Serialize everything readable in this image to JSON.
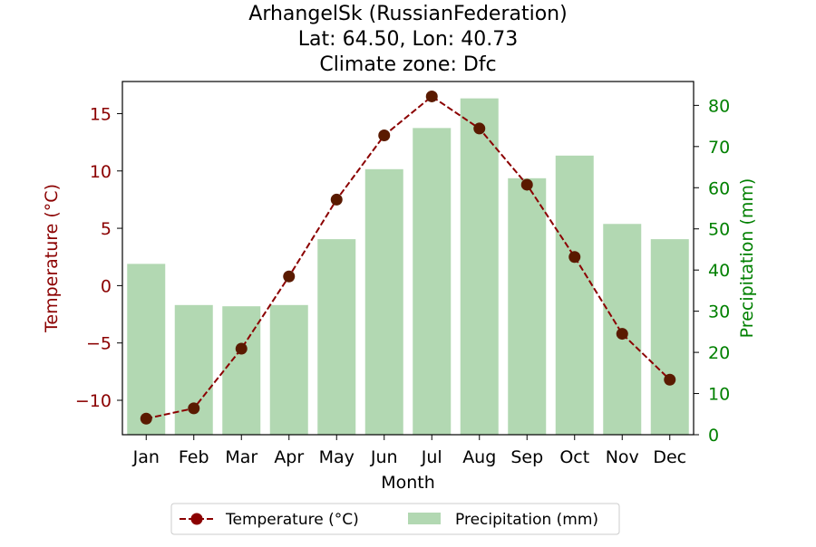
{
  "chart_data": {
    "type": "bar+line",
    "title_lines": [
      "ArhangelSk (RussianFederation)",
      "Lat: 64.50, Lon: 40.73",
      "Climate zone: Dfc"
    ],
    "xlabel": "Month",
    "categories": [
      "Jan",
      "Feb",
      "Mar",
      "Apr",
      "May",
      "Jun",
      "Jul",
      "Aug",
      "Sep",
      "Oct",
      "Nov",
      "Dec"
    ],
    "series": [
      {
        "name": "Temperature (°C)",
        "type": "line",
        "axis": "left",
        "values": [
          -11.6,
          -10.7,
          -5.5,
          0.8,
          7.5,
          13.1,
          16.5,
          13.7,
          8.8,
          2.5,
          -4.2,
          -8.2
        ],
        "color": "#8b0000",
        "marker_color": "#5a1a00"
      },
      {
        "name": "Precipitation (mm)",
        "type": "bar",
        "axis": "right",
        "values": [
          41.5,
          31.5,
          31.2,
          31.5,
          47.5,
          64.5,
          74.5,
          81.7,
          62.3,
          67.8,
          51.2,
          47.5
        ],
        "color": "#b2d8b2"
      }
    ],
    "y_left": {
      "label": "Temperature (°C)",
      "range": [
        -13.0,
        17.8
      ],
      "ticks": [
        -10,
        -5,
        0,
        5,
        10,
        15
      ],
      "tick_labels": [
        "−10",
        "−5",
        "0",
        "5",
        "10",
        "15"
      ],
      "color": "#8b0000"
    },
    "y_right": {
      "label": "Precipitation (mm)",
      "range": [
        0,
        85.8
      ],
      "ticks": [
        0,
        10,
        20,
        30,
        40,
        50,
        60,
        70,
        80
      ],
      "tick_labels": [
        "0",
        "10",
        "20",
        "30",
        "40",
        "50",
        "60",
        "70",
        "80"
      ],
      "color": "#008000"
    },
    "legend": {
      "placement": "bottom-center",
      "entries": [
        "Temperature (°C)",
        "Precipitation (mm)"
      ]
    },
    "grid": false
  }
}
